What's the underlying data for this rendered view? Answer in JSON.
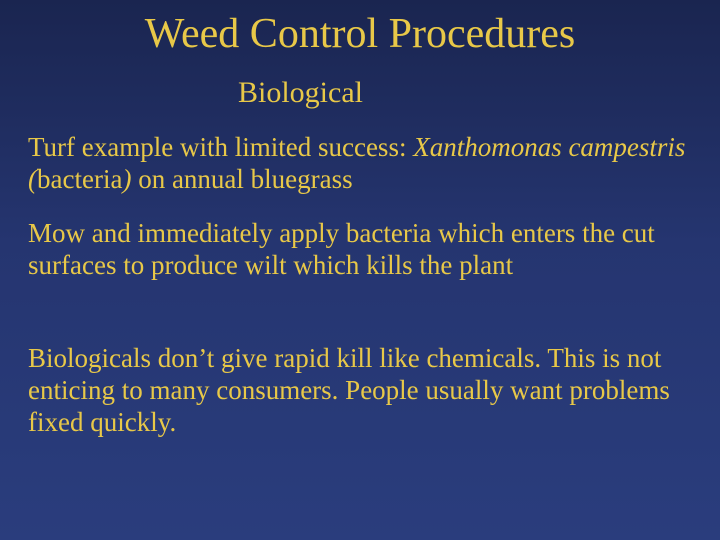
{
  "colors": {
    "title_color": "#e8c848",
    "subtitle_color": "#e8c848",
    "body_color": "#e8c848",
    "background_top": "#1a2550",
    "background_mid": "#253570",
    "background_bottom": "#2a3d7d"
  },
  "typography": {
    "font_family": "Times New Roman",
    "title_fontsize": 42,
    "subtitle_fontsize": 30,
    "body_fontsize": 27
  },
  "title": "Weed Control Procedures",
  "subtitle": "Biological",
  "p1_a": "Turf example with limited success:  ",
  "p1_b": "Xanthomonas campestris (",
  "p1_c": "bacteria",
  "p1_d": ")",
  "p1_e": " on annual bluegrass",
  "p2": "Mow and immediately apply bacteria which enters the cut surfaces to produce wilt which kills the plant",
  "p3": "Biologicals don’t give rapid kill like chemicals.  This is not enticing to many consumers.  People usually want problems fixed quickly."
}
